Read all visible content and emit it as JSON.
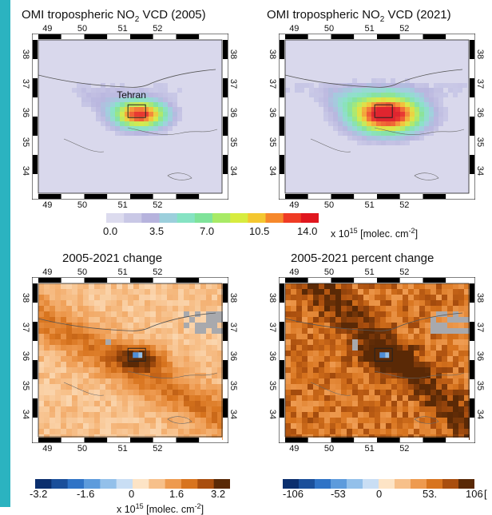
{
  "colors": {
    "accent": "#2bb3c0",
    "background_conc": "#d9d8ec",
    "change_base": "#f3c48f",
    "pct_base": "#e8842e"
  },
  "panels": {
    "p2005": {
      "title_main": "OMI tropospheric NO",
      "title_sub": "2",
      "title_end": " VCD (2005)"
    },
    "p2021": {
      "title_main": "OMI tropospheric NO",
      "title_sub": "2",
      "title_end": " VCD (2021)"
    },
    "change": {
      "title": "2005-2021 change"
    },
    "pct": {
      "title": "2005-2021 percent change"
    }
  },
  "city_label": "Tehran",
  "map_axes": {
    "lon_ticks": [
      "49",
      "50",
      "51",
      "52"
    ],
    "lat_ticks": [
      "38",
      "37",
      "36",
      "35",
      "34"
    ]
  },
  "colorbars": {
    "conc": {
      "ticks": [
        "0.0",
        "3.5",
        "7.0",
        "10.5",
        "14.0"
      ],
      "unit_pre": "x 10",
      "unit_exp": "15",
      "unit_mid": " [molec. cm",
      "unit_exp2": "-2",
      "unit_post": "]",
      "colors": [
        "#dcdbee",
        "#c9c8e6",
        "#b6b3dd",
        "#9ccfdc",
        "#86e3c3",
        "#7fe39a",
        "#a8ea66",
        "#d7ec3f",
        "#f4c730",
        "#f6882b",
        "#ef3b24",
        "#e0161e"
      ]
    },
    "change": {
      "ticks": [
        "-3.2",
        "-1.6",
        "0",
        "1.6",
        "3.2"
      ],
      "unit_pre": "x 10",
      "unit_exp": "15",
      "unit_mid": " [molec. cm",
      "unit_exp2": "-2",
      "unit_post": "]",
      "colors": [
        "#0b2f6e",
        "#1a4f9a",
        "#2f73c6",
        "#5d9bdc",
        "#93c0ea",
        "#c9def4",
        "#fde4c6",
        "#f7c08a",
        "#ee9a4f",
        "#d8741e",
        "#a94e0e",
        "#5a2906"
      ]
    },
    "pct": {
      "ticks": [
        "-106",
        "-53",
        "0",
        "53.",
        "106"
      ],
      "unit_tail": "[",
      "colors": [
        "#0b2f6e",
        "#1a4f9a",
        "#2f73c6",
        "#5d9bdc",
        "#93c0ea",
        "#c9def4",
        "#fde4c6",
        "#f7c08a",
        "#ee9a4f",
        "#d8741e",
        "#a94e0e",
        "#5a2906"
      ]
    }
  }
}
